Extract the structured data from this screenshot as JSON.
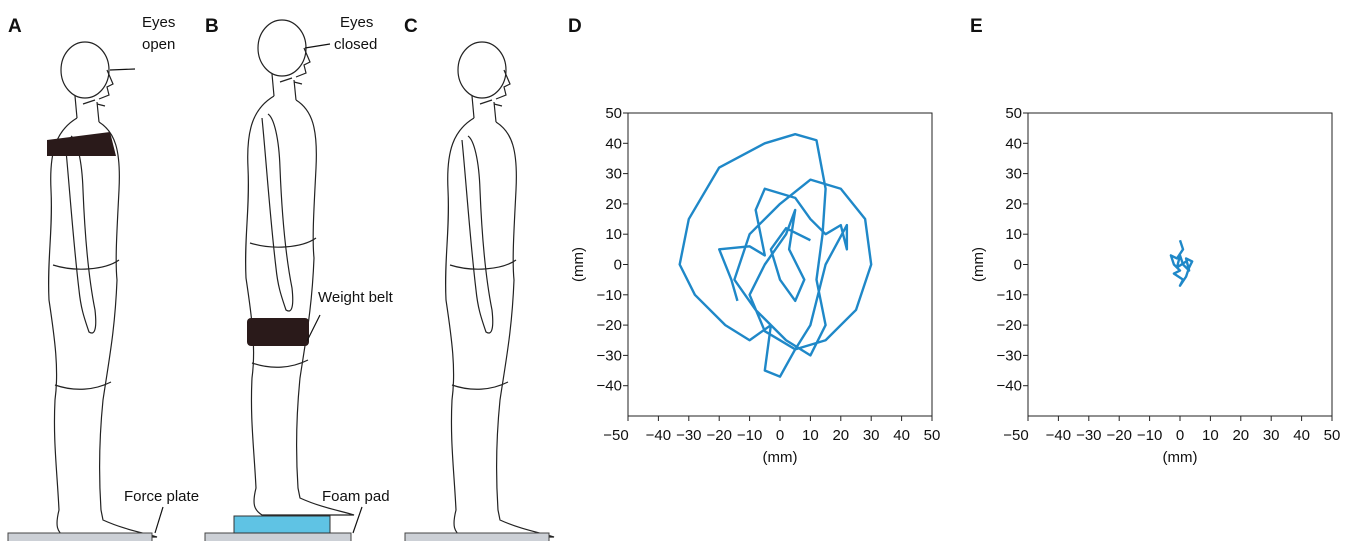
{
  "panels": {
    "labels": [
      "A",
      "B",
      "C",
      "D",
      "E"
    ]
  },
  "illustration": {
    "eyes_open": [
      "Eyes",
      "open"
    ],
    "eyes_closed": [
      "Eyes",
      "closed"
    ],
    "weight_belt": "Weight belt",
    "force_plate": "Force plate",
    "foam_pad": "Foam pad"
  },
  "chart_data": [
    {
      "type": "line",
      "xlabel": "(mm)",
      "ylabel": "(mm)",
      "x": [
        -14,
        -16,
        -20,
        -10,
        -5,
        -8,
        -5,
        5,
        10,
        15,
        20,
        22,
        22,
        15,
        10,
        5,
        0,
        -5,
        -3,
        -10,
        -18,
        -28,
        -33,
        -30,
        -20,
        -5,
        5,
        12,
        15,
        14,
        12,
        15,
        10,
        2,
        -8,
        -15,
        -10,
        0,
        10,
        20,
        28,
        30,
        25,
        15,
        5,
        -5,
        -10,
        -5,
        2,
        5,
        3,
        8,
        5,
        0,
        -3,
        2,
        10
      ],
      "series": [
        {
          "color": "#1f88c8",
          "values": [
            -12,
            -5,
            5,
            6,
            3,
            18,
            25,
            22,
            15,
            10,
            13,
            5,
            13,
            0,
            -20,
            -28,
            -37,
            -35,
            -20,
            -25,
            -20,
            -10,
            0,
            15,
            32,
            40,
            43,
            41,
            25,
            10,
            -5,
            -20,
            -30,
            -25,
            -15,
            -5,
            10,
            20,
            28,
            25,
            15,
            0,
            -15,
            -25,
            -28,
            -22,
            -10,
            0,
            10,
            18,
            5,
            -5,
            -12,
            -5,
            5,
            12,
            8
          ]
        }
      ],
      "xlim": [
        -50,
        50
      ],
      "ylim": [
        -50,
        50
      ],
      "xticks": [
        {
          "value": -50,
          "label": "−50"
        },
        {
          "value": -40,
          "label": "−40"
        },
        {
          "value": -30,
          "label": "−30"
        },
        {
          "value": -20,
          "label": "−20"
        },
        {
          "value": -10,
          "label": "−10"
        },
        0,
        10,
        20,
        30,
        40,
        50
      ],
      "yticks": [
        {
          "value": -40,
          "label": "−40"
        },
        {
          "value": -30,
          "label": "−30"
        },
        {
          "value": -20,
          "label": "−20"
        },
        {
          "value": -10,
          "label": "−10"
        },
        0,
        10,
        20,
        30,
        40,
        50
      ]
    },
    {
      "type": "line",
      "xlabel": "(mm)",
      "ylabel": "(mm)",
      "x": [
        0,
        1,
        -1,
        -3,
        -2,
        0,
        -2,
        1,
        0,
        2,
        3,
        4,
        2,
        3,
        1,
        0,
        -1,
        2
      ],
      "series": [
        {
          "color": "#1f88c8",
          "values": [
            8,
            5,
            2,
            3,
            0,
            -2,
            -3,
            -5,
            -7,
            -4,
            -1,
            1,
            2,
            -2,
            0,
            3,
            -1,
            1
          ]
        }
      ],
      "xlim": [
        -50,
        50
      ],
      "ylim": [
        -50,
        50
      ],
      "xticks": [
        {
          "value": -50,
          "label": "−50"
        },
        {
          "value": -40,
          "label": "−40"
        },
        {
          "value": -30,
          "label": "−30"
        },
        {
          "value": -20,
          "label": "−20"
        },
        {
          "value": -10,
          "label": "−10"
        },
        0,
        10,
        20,
        30,
        40,
        50
      ],
      "yticks": [
        {
          "value": -40,
          "label": "−40"
        },
        {
          "value": -30,
          "label": "−30"
        },
        {
          "value": -20,
          "label": "−20"
        },
        {
          "value": -10,
          "label": "−10"
        },
        0,
        10,
        20,
        30,
        40,
        50
      ]
    }
  ]
}
